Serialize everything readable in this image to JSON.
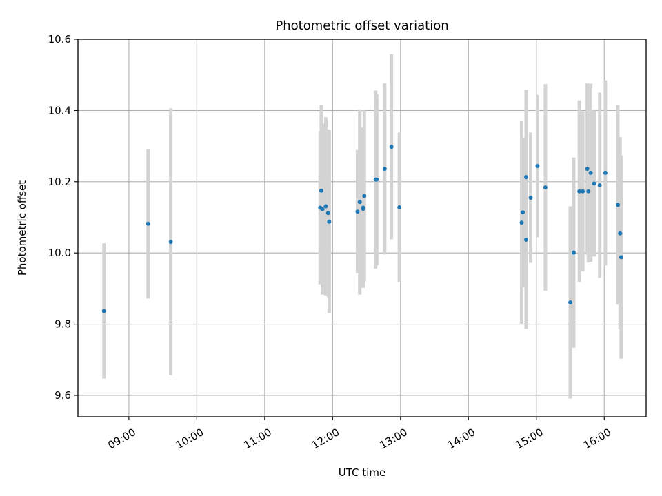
{
  "chart_data": {
    "type": "scatter",
    "title": "Photometric offset variation",
    "xlabel": "UTC time",
    "ylabel": "Photometric offset",
    "x_unit": "UTC time (HH:MM)",
    "xlim": [
      "08:15",
      "16:37"
    ],
    "ylim": [
      9.54,
      10.6
    ],
    "x_ticks": [
      "09:00",
      "10:00",
      "11:00",
      "12:00",
      "13:00",
      "14:00",
      "15:00",
      "16:00"
    ],
    "y_ticks": [
      9.6,
      9.8,
      10.0,
      10.2,
      10.4,
      10.6
    ],
    "y_tick_labels": [
      "9.6",
      "9.8",
      "10.0",
      "10.2",
      "10.4",
      "10.6"
    ],
    "grid": true,
    "point_color": "#1f77b4",
    "errorbar_color": "#d3d3d3",
    "series": [
      {
        "points": [
          {
            "x": "08:38",
            "y": 9.837,
            "yerr": 0.19
          },
          {
            "x": "09:17",
            "y": 10.082,
            "yerr": 0.21
          },
          {
            "x": "09:37",
            "y": 10.031,
            "yerr": 0.375
          },
          {
            "x": "11:49",
            "y": 10.127,
            "yerr": 0.215
          },
          {
            "x": "11:50",
            "y": 10.175,
            "yerr": 0.24
          },
          {
            "x": "11:51",
            "y": 10.123,
            "yerr": 0.24
          },
          {
            "x": "11:54",
            "y": 10.131,
            "yerr": 0.25
          },
          {
            "x": "11:56",
            "y": 10.112,
            "yerr": 0.235
          },
          {
            "x": "11:57",
            "y": 10.088,
            "yerr": 0.257
          },
          {
            "x": "12:22",
            "y": 10.116,
            "yerr": 0.173
          },
          {
            "x": "12:24",
            "y": 10.143,
            "yerr": 0.26
          },
          {
            "x": "12:27",
            "y": 10.124,
            "yerr": 0.22
          },
          {
            "x": "12:27",
            "y": 10.127,
            "yerr": 0.225
          },
          {
            "x": "12:28",
            "y": 10.16,
            "yerr": 0.24
          },
          {
            "x": "12:38",
            "y": 10.206,
            "yerr": 0.25
          },
          {
            "x": "12:39",
            "y": 10.206,
            "yerr": 0.24
          },
          {
            "x": "12:46",
            "y": 10.236,
            "yerr": 0.24
          },
          {
            "x": "12:52",
            "y": 10.298,
            "yerr": 0.26
          },
          {
            "x": "12:59",
            "y": 10.128,
            "yerr": 0.21
          },
          {
            "x": "14:47",
            "y": 10.085,
            "yerr": 0.285
          },
          {
            "x": "14:48",
            "y": 10.114,
            "yerr": 0.21
          },
          {
            "x": "14:51",
            "y": 10.213,
            "yerr": 0.245
          },
          {
            "x": "14:51",
            "y": 10.037,
            "yerr": 0.25
          },
          {
            "x": "14:55",
            "y": 10.155,
            "yerr": 0.183
          },
          {
            "x": "15:01",
            "y": 10.244,
            "yerr": 0.2
          },
          {
            "x": "15:08",
            "y": 10.184,
            "yerr": 0.29
          },
          {
            "x": "15:30",
            "y": 9.861,
            "yerr": 0.27
          },
          {
            "x": "15:33",
            "y": 10.001,
            "yerr": 0.267
          },
          {
            "x": "15:38",
            "y": 10.173,
            "yerr": 0.255
          },
          {
            "x": "15:41",
            "y": 10.173,
            "yerr": 0.225
          },
          {
            "x": "15:45",
            "y": 10.236,
            "yerr": 0.24
          },
          {
            "x": "15:46",
            "y": 10.173,
            "yerr": 0.2
          },
          {
            "x": "15:48",
            "y": 10.225,
            "yerr": 0.25
          },
          {
            "x": "15:51",
            "y": 10.195,
            "yerr": 0.205
          },
          {
            "x": "15:56",
            "y": 10.19,
            "yerr": 0.26
          },
          {
            "x": "16:01",
            "y": 10.225,
            "yerr": 0.26
          },
          {
            "x": "16:12",
            "y": 10.135,
            "yerr": 0.28
          },
          {
            "x": "16:14",
            "y": 10.055,
            "yerr": 0.27
          },
          {
            "x": "16:15",
            "y": 9.988,
            "yerr": 0.285
          }
        ]
      }
    ]
  }
}
